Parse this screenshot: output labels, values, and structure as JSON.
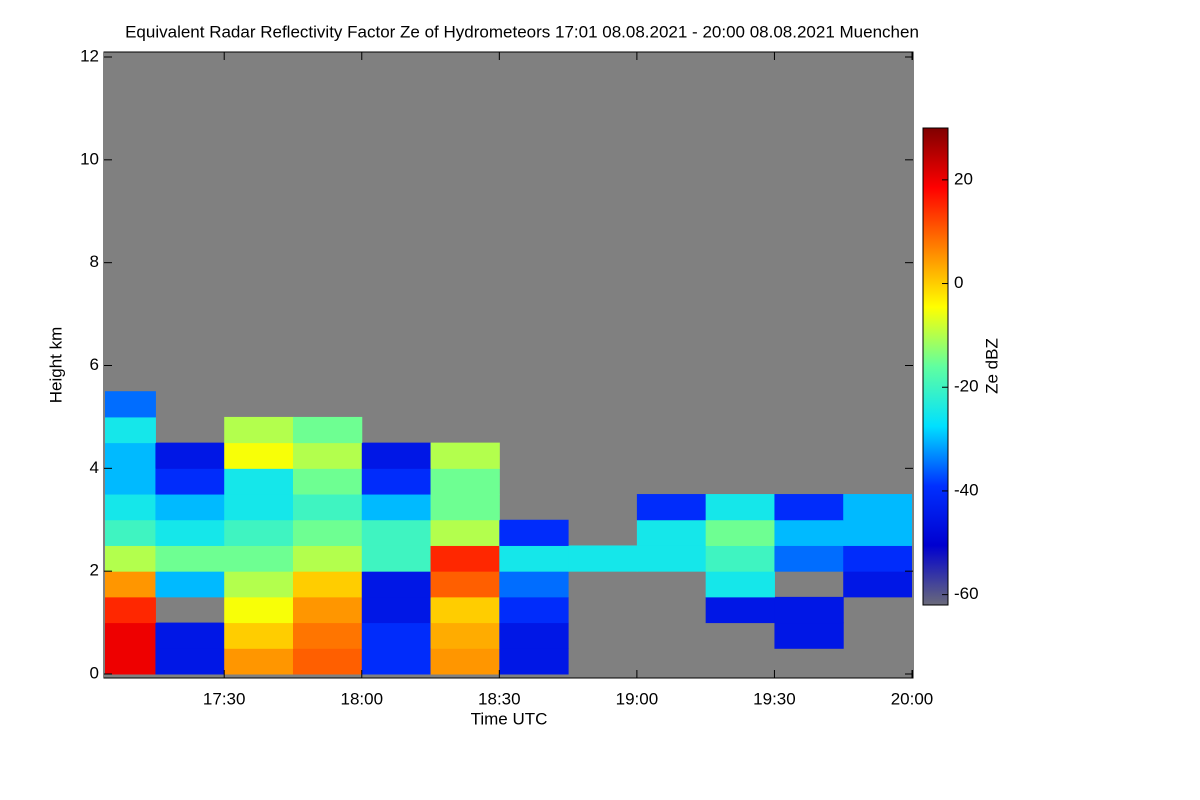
{
  "chart_data": {
    "type": "heatmap",
    "title": "Equivalent Radar Reflectivity Factor Ze of Hydrometeors   17:01 08.08.2021 - 20:00 08.08.2021 Muenchen",
    "x_label": "Time UTC",
    "y_label": "Height km",
    "colorbar_label": "Ze dBZ",
    "background": "#808080",
    "colors": [
      "#6a6a7a",
      "#0000d0",
      "#0030ff",
      "#00e0ff",
      "#60ffa0",
      "#ffff00",
      "#ff8000",
      "#ff0000",
      "#800000"
    ],
    "xlim": [
      17.0667,
      20.0
    ],
    "xticks": [
      {
        "value": 17.5,
        "label": "17:30"
      },
      {
        "value": 18.0,
        "label": "18:00"
      },
      {
        "value": 18.5,
        "label": "18:30"
      },
      {
        "value": 19.0,
        "label": "19:00"
      },
      {
        "value": 19.5,
        "label": "19:30"
      },
      {
        "value": 20.0,
        "label": "20:00"
      }
    ],
    "ylim": [
      0,
      12
    ],
    "yticks": [
      0,
      2,
      4,
      6,
      8,
      10,
      12
    ],
    "zlim": [
      -62,
      30
    ],
    "zticks": [
      -60,
      -40,
      -20,
      0,
      20
    ],
    "x": [
      17.125,
      17.375,
      17.625,
      17.875,
      18.125,
      18.375,
      18.625,
      18.875,
      19.125,
      19.375,
      19.625,
      19.875
    ],
    "y": [
      0.25,
      0.75,
      1.25,
      1.75,
      2.25,
      2.75,
      3.25,
      3.75,
      4.25,
      4.75,
      5.25
    ],
    "z": [
      [
        20,
        -45,
        5,
        10,
        -40,
        5,
        -45,
        null,
        null,
        null,
        null,
        null
      ],
      [
        20,
        -45,
        0,
        8,
        -40,
        3,
        -45,
        null,
        null,
        null,
        -45,
        null
      ],
      [
        15,
        null,
        -5,
        5,
        -45,
        0,
        -40,
        null,
        null,
        -45,
        -45,
        null
      ],
      [
        5,
        -30,
        -10,
        0,
        -45,
        10,
        -35,
        null,
        null,
        -25,
        null,
        -45
      ],
      [
        -10,
        -15,
        -15,
        -10,
        -20,
        15,
        -25,
        -25,
        -25,
        -20,
        -35,
        -40
      ],
      [
        -20,
        -25,
        -20,
        -15,
        -20,
        -10,
        -40,
        null,
        -25,
        -15,
        -30,
        -30
      ],
      [
        -25,
        -30,
        -25,
        -20,
        -30,
        -15,
        null,
        null,
        -40,
        -25,
        -40,
        -30
      ],
      [
        -30,
        -40,
        -25,
        -15,
        -40,
        -15,
        null,
        null,
        null,
        null,
        null,
        null
      ],
      [
        -30,
        -45,
        -5,
        -10,
        -45,
        -10,
        null,
        null,
        null,
        null,
        null,
        null
      ],
      [
        -25,
        null,
        -10,
        -15,
        null,
        null,
        null,
        null,
        null,
        null,
        null,
        null
      ],
      [
        -35,
        null,
        null,
        null,
        null,
        null,
        null,
        null,
        null,
        null,
        null,
        null
      ]
    ]
  }
}
